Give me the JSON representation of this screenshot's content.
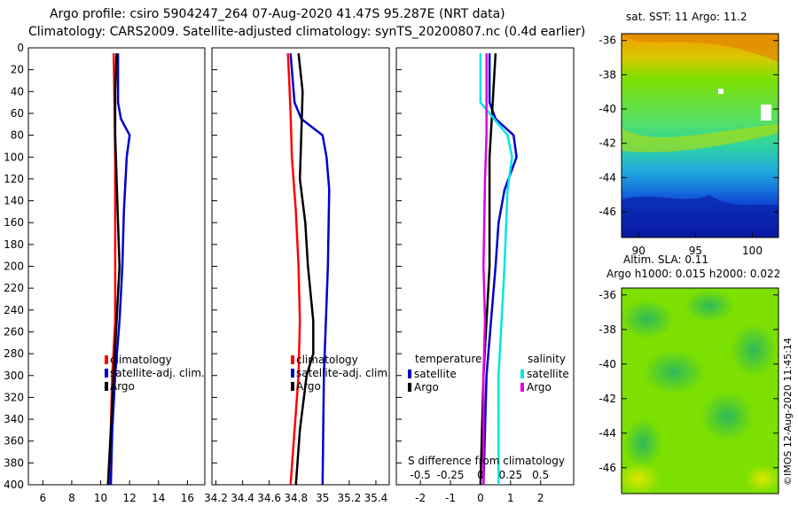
{
  "header": {
    "title_line1": "Argo profile: csiro 5904247_264 07-Aug-2020 41.47S 95.287E (NRT data)",
    "title_line2": "Climatology: CARS2009. Satellite-adjusted climatology: synTS_20200807.nc (0.4d earlier)"
  },
  "colors": {
    "climatology": "#ff0000",
    "satellite": "#0000cc",
    "argo": "#000000",
    "satellite_salinity": "#00e5e5",
    "argo_salinity": "#e000e0"
  },
  "chart_data": [
    {
      "type": "line",
      "name": "temperature-profile",
      "xlabel": "",
      "ylabel": "",
      "xlim": [
        5,
        17.2
      ],
      "ylim": [
        400,
        0
      ],
      "xticks": [
        "6",
        "8",
        "10",
        "12",
        "14",
        "16"
      ],
      "yticks": [
        "0",
        "20",
        "40",
        "60",
        "80",
        "100",
        "120",
        "140",
        "160",
        "180",
        "200",
        "220",
        "240",
        "260",
        "280",
        "300",
        "320",
        "340",
        "360",
        "380",
        "400"
      ],
      "legend": [
        "climatology",
        "satellite-adj. clim.",
        "Argo"
      ],
      "series": [
        {
          "name": "climatology",
          "depth": [
            5,
            50,
            100,
            150,
            200,
            250,
            300,
            350,
            400
          ],
          "values": [
            10.9,
            10.95,
            11.0,
            11.0,
            11.0,
            11.0,
            10.8,
            10.7,
            10.6
          ]
        },
        {
          "name": "satellite-adj. clim.",
          "depth": [
            5,
            50,
            65,
            80,
            100,
            150,
            200,
            250,
            300,
            350,
            400
          ],
          "values": [
            11.2,
            11.2,
            11.4,
            12.0,
            11.8,
            11.6,
            11.5,
            11.3,
            11.0,
            10.8,
            10.7
          ]
        },
        {
          "name": "Argo",
          "depth": [
            5,
            40,
            80,
            120,
            160,
            200,
            250,
            300,
            350,
            400
          ],
          "values": [
            11.1,
            11.0,
            11.0,
            11.1,
            11.2,
            11.3,
            11.1,
            10.9,
            10.7,
            10.5
          ]
        }
      ]
    },
    {
      "type": "line",
      "name": "salinity-profile",
      "xlabel": "",
      "ylabel": "",
      "xlim": [
        34.17,
        35.5
      ],
      "ylim": [
        400,
        0
      ],
      "xticks": [
        "34.2",
        "34.4",
        "34.6",
        "34.8",
        "35",
        "35.2",
        "35.4"
      ],
      "legend": [
        "climatology",
        "satellite-adj. clim.",
        "Argo"
      ],
      "series": [
        {
          "name": "climatology",
          "depth": [
            5,
            30,
            60,
            100,
            150,
            200,
            250,
            300,
            350,
            400
          ],
          "values": [
            34.74,
            34.75,
            34.76,
            34.77,
            34.8,
            34.82,
            34.83,
            34.82,
            34.79,
            34.76
          ],
          "color_key": "climatology"
        },
        {
          "name": "satellite-adj. clim.",
          "depth": [
            5,
            50,
            65,
            80,
            100,
            130,
            200,
            300,
            400
          ],
          "values": [
            34.76,
            34.79,
            34.84,
            35.0,
            35.03,
            35.05,
            35.04,
            35.01,
            35.0
          ],
          "color_key": "satellite"
        },
        {
          "name": "Argo",
          "depth": [
            5,
            40,
            80,
            120,
            160,
            200,
            250,
            280,
            300,
            350,
            400
          ],
          "values": [
            34.82,
            34.85,
            34.84,
            34.83,
            34.87,
            34.89,
            34.93,
            34.93,
            34.88,
            34.83,
            34.8
          ],
          "color_key": "argo"
        }
      ]
    },
    {
      "type": "line",
      "name": "difference-from-climatology",
      "xlabel": "S difference from climatology",
      "xlim": [
        -2.8,
        3.1
      ],
      "ylim": [
        400,
        0
      ],
      "xticks": [
        "-2",
        "-1",
        "0",
        "1",
        "2"
      ],
      "xticks_top": [
        "-0.5",
        "-0.25",
        "0",
        "0.25",
        "0.5"
      ],
      "legend_temperature": {
        "title": "temperature",
        "items": [
          "satellite",
          "Argo"
        ]
      },
      "legend_salinity": {
        "title": "salinity",
        "items": [
          "satellite",
          "Argo"
        ]
      },
      "series": [
        {
          "name": "temperature satellite",
          "depth": [
            5,
            50,
            65,
            80,
            100,
            130,
            160,
            200,
            300,
            400
          ],
          "values": [
            0.3,
            0.3,
            0.5,
            1.1,
            1.2,
            0.8,
            0.6,
            0.5,
            0.2,
            0.1
          ],
          "color_key": "satellite"
        },
        {
          "name": "temperature Argo",
          "depth": [
            5,
            100,
            150,
            200,
            250,
            300,
            400
          ],
          "values": [
            0.5,
            0.3,
            0.3,
            0.3,
            0.2,
            0.1,
            0.0
          ],
          "color_key": "argo"
        },
        {
          "name": "salinity satellite",
          "depth": [
            5,
            50,
            70,
            80,
            100,
            130,
            200,
            300,
            400
          ],
          "values": [
            0.0,
            0.0,
            0.6,
            0.9,
            1.05,
            0.9,
            0.8,
            0.6,
            0.6
          ],
          "color_key": "satellite_salinity"
        },
        {
          "name": "salinity Argo",
          "depth": [
            5,
            40,
            80,
            120,
            200,
            250,
            300,
            400
          ],
          "values": [
            0.2,
            0.2,
            0.2,
            0.15,
            0.1,
            0.15,
            0.1,
            0.1
          ],
          "color_key": "argo_salinity"
        }
      ]
    },
    {
      "type": "heatmap",
      "name": "sst-map",
      "title": "sat. SST: 11 Argo: 11.2",
      "xlim": [
        88.5,
        102.3
      ],
      "ylim": [
        -47.5,
        -35.6
      ],
      "xticks": [
        "90",
        "95",
        "100"
      ],
      "yticks": [
        "-36",
        "-38",
        "-40",
        "-42",
        "-44",
        "-46"
      ]
    },
    {
      "type": "heatmap",
      "name": "sla-map",
      "title_line1": "Altim. SLA: 0.11",
      "title_line2": "Argo h1000: 0.015 h2000: 0.022",
      "xlim": [
        88.5,
        102.3
      ],
      "ylim": [
        -47.5,
        -35.6
      ],
      "yticks": [
        "-36",
        "-38",
        "-40",
        "-42",
        "-44",
        "-46"
      ]
    }
  ],
  "watermark": "©IMOS 12-Aug-2020 11:45:14"
}
